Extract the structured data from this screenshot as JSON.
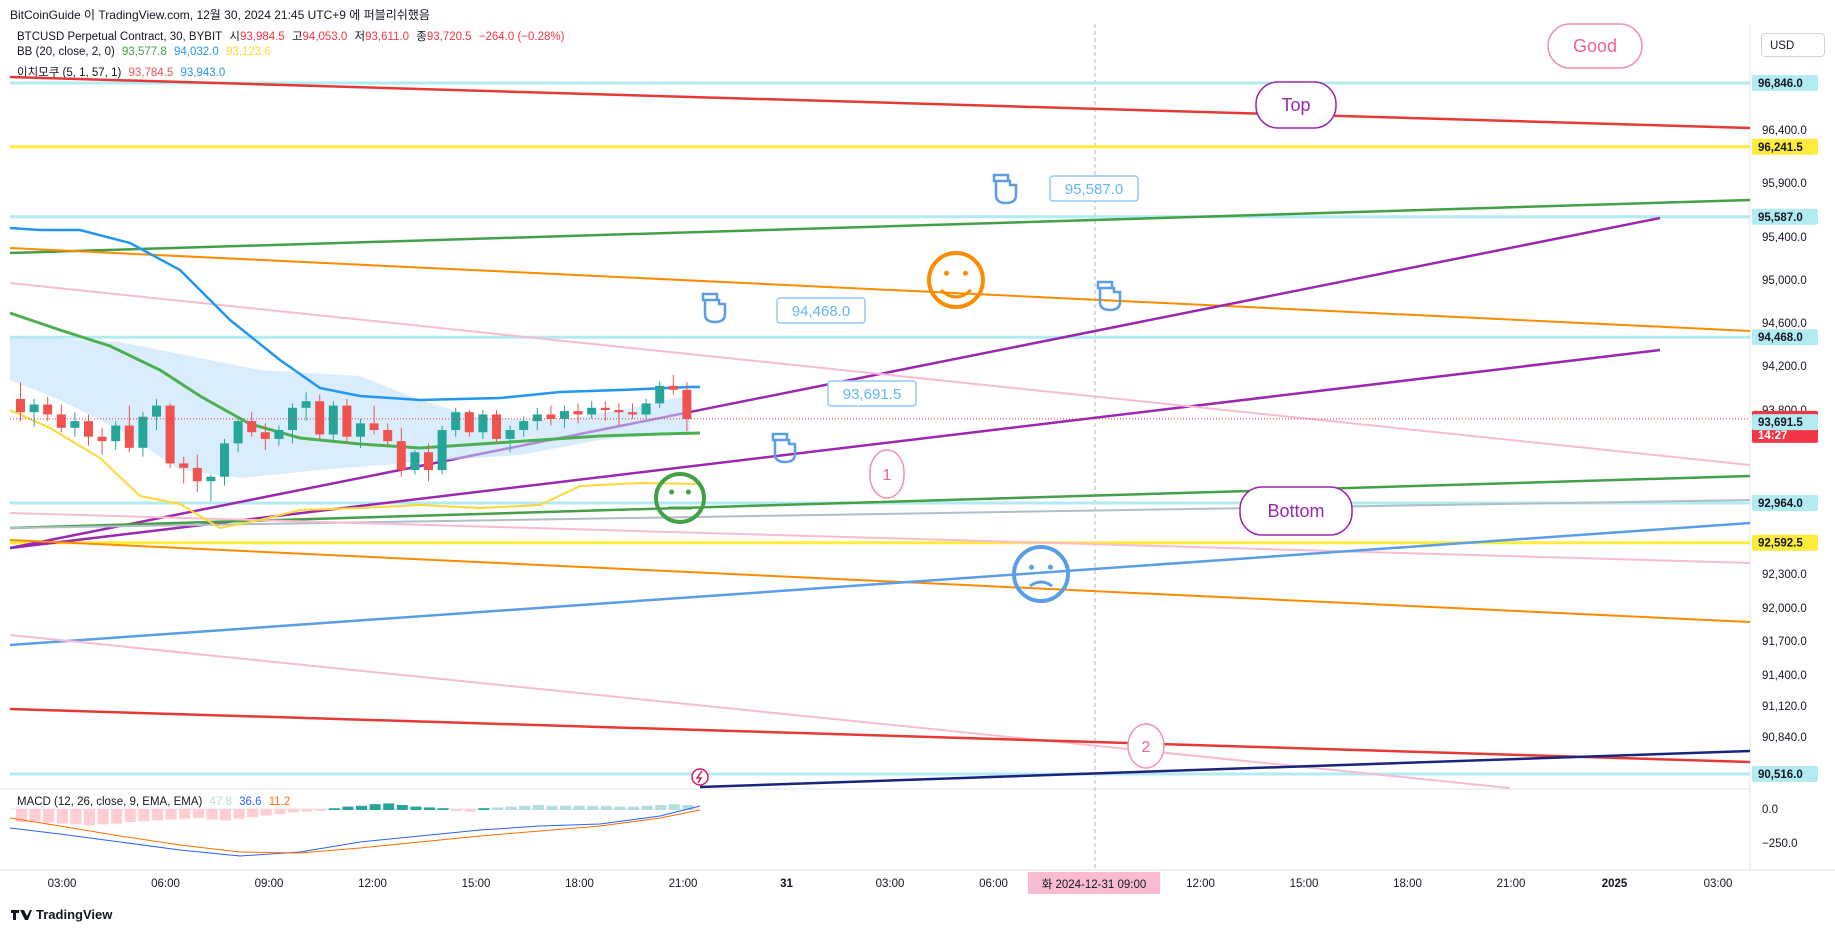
{
  "header": {
    "text": "BitCoinGuide 이 TradingView.com, 12월 30, 2024 21:45 UTC+9 에 퍼블리쉬했음"
  },
  "legend": {
    "symbol": "BTCUSD Perpetual Contract, 30, BYBIT",
    "o_label": "시",
    "o_value": "93,984.5",
    "h_label": "고",
    "h_value": "94,053.0",
    "l_label": "저",
    "l_value": "93,611.0",
    "c_label": "종",
    "c_value": "93,720.5",
    "change": "−264.0 (−0.28%)",
    "bb_label": "BB (20, close, 2, 0)",
    "bb_basis": "93,577.8",
    "bb_upper": "94,032.0",
    "bb_lower": "93,123.6",
    "ichi_label": "이치모쿠 (5, 1, 57, 1)",
    "ichi_a": "93,784.5",
    "ichi_b": "93,943.0",
    "macd_label": "MACD (12, 26, close, 9, EMA, EMA)",
    "macd_hist": "47.8",
    "macd_line": "36.6",
    "macd_signal": "11.2"
  },
  "currency_button": "USD",
  "footer": {
    "brand": "TradingView"
  },
  "colors": {
    "up": "#26a69a",
    "down": "#ef5350",
    "red": "#e53935",
    "yellow": "#ffeb3b",
    "green": "#43a047",
    "orange": "#fb8c00",
    "purple": "#9c27b0",
    "pink": "#f8bbd0",
    "blue": "#5b9ee6",
    "navy": "#1a237e",
    "cyan_level": "#b2ebf2"
  },
  "chart_data": {
    "type": "candlestick",
    "price_axis": {
      "ticks": [
        "96,400.0",
        "95,900.0",
        "95,400.0",
        "95,000.0",
        "94,600.0",
        "94,200.0",
        "93,800.0",
        "92,300.0",
        "92,000.0",
        "91,700.0",
        "91,400.0",
        "91,120.0",
        "90,840.0"
      ],
      "highlighted_levels": [
        {
          "label": "96,846.0",
          "bg": "#b2ebf2",
          "fg": "#131722"
        },
        {
          "label": "96,241.5",
          "bg": "#ffeb3b",
          "fg": "#131722"
        },
        {
          "label": "95,587.0",
          "bg": "#b2ebf2",
          "fg": "#131722"
        },
        {
          "label": "94,468.0",
          "bg": "#b2ebf2",
          "fg": "#131722"
        },
        {
          "label": "93,720.5",
          "bg": "#f23645",
          "fg": "#ffffff"
        },
        {
          "label": "14:27",
          "bg": "#f23645",
          "fg": "#ffffff"
        },
        {
          "label": "93,691.5",
          "bg": "#b2ebf2",
          "fg": "#131722"
        },
        {
          "label": "92,964.0",
          "bg": "#b2ebf2",
          "fg": "#131722"
        },
        {
          "label": "92,592.5",
          "bg": "#ffeb3b",
          "fg": "#131722"
        },
        {
          "label": "90,516.0",
          "bg": "#b2ebf2",
          "fg": "#131722"
        }
      ]
    },
    "macd_axis": {
      "ticks": [
        "0.0",
        "−250.0"
      ]
    },
    "time_axis": {
      "ticks": [
        "03:00",
        "06:00",
        "09:00",
        "12:00",
        "15:00",
        "18:00",
        "21:00",
        "31",
        "03:00",
        "06:00",
        "09:00",
        "12:00",
        "15:00",
        "18:00",
        "21:00",
        "2025",
        "03:00"
      ],
      "crosshair_label": "화 2024-12-31  09:00"
    },
    "candles": [
      [
        93900,
        94050,
        93700,
        93780
      ],
      [
        93780,
        93900,
        93650,
        93850
      ],
      [
        93850,
        93920,
        93700,
        93760
      ],
      [
        93760,
        93850,
        93600,
        93640
      ],
      [
        93640,
        93780,
        93560,
        93700
      ],
      [
        93700,
        93760,
        93480,
        93560
      ],
      [
        93560,
        93640,
        93400,
        93520
      ],
      [
        93520,
        93700,
        93440,
        93660
      ],
      [
        93660,
        93840,
        93420,
        93460
      ],
      [
        93460,
        93780,
        93380,
        93740
      ],
      [
        93740,
        93900,
        93620,
        93840
      ],
      [
        93840,
        93860,
        93280,
        93320
      ],
      [
        93320,
        93380,
        93140,
        93280
      ],
      [
        93280,
        93400,
        93060,
        93160
      ],
      [
        93160,
        93220,
        92980,
        93200
      ],
      [
        93200,
        93540,
        93120,
        93500
      ],
      [
        93500,
        93740,
        93420,
        93700
      ],
      [
        93700,
        93780,
        93560,
        93600
      ],
      [
        93600,
        93680,
        93440,
        93540
      ],
      [
        93540,
        93660,
        93480,
        93620
      ],
      [
        93620,
        93860,
        93500,
        93820
      ],
      [
        93820,
        93960,
        93700,
        93880
      ],
      [
        93880,
        93940,
        93540,
        93580
      ],
      [
        93580,
        93880,
        93520,
        93840
      ],
      [
        93840,
        93900,
        93500,
        93560
      ],
      [
        93560,
        93720,
        93460,
        93680
      ],
      [
        93680,
        93840,
        93580,
        93620
      ],
      [
        93620,
        93680,
        93480,
        93520
      ],
      [
        93520,
        93640,
        93200,
        93260
      ],
      [
        93260,
        93440,
        93220,
        93420
      ],
      [
        93420,
        93500,
        93160,
        93260
      ],
      [
        93260,
        93660,
        93220,
        93620
      ],
      [
        93620,
        93820,
        93560,
        93780
      ],
      [
        93780,
        93800,
        93560,
        93600
      ],
      [
        93600,
        93800,
        93540,
        93760
      ],
      [
        93760,
        93800,
        93500,
        93540
      ],
      [
        93540,
        93660,
        93420,
        93620
      ],
      [
        93620,
        93740,
        93560,
        93700
      ],
      [
        93700,
        93820,
        93620,
        93760
      ],
      [
        93760,
        93840,
        93660,
        93720
      ],
      [
        93720,
        93840,
        93640,
        93790
      ],
      [
        93790,
        93860,
        93680,
        93760
      ],
      [
        93760,
        93880,
        93720,
        93820
      ],
      [
        93820,
        93880,
        93700,
        93800
      ],
      [
        93800,
        93860,
        93660,
        93780
      ],
      [
        93780,
        93860,
        93720,
        93760
      ],
      [
        93760,
        93900,
        93720,
        93860
      ],
      [
        93860,
        94060,
        93820,
        94020
      ],
      [
        94020,
        94120,
        93940,
        93984
      ],
      [
        93984,
        94053,
        93611,
        93720
      ]
    ],
    "annotations": [
      {
        "type": "price_label",
        "text": "95,587.0"
      },
      {
        "type": "price_label",
        "text": "94,468.0"
      },
      {
        "type": "price_label",
        "text": "93,691.5"
      },
      {
        "type": "callout",
        "text": "Good"
      },
      {
        "type": "callout",
        "text": "Top"
      },
      {
        "type": "callout",
        "text": "Bottom"
      },
      {
        "type": "callout",
        "text": "1"
      },
      {
        "type": "callout",
        "text": "2"
      }
    ]
  }
}
